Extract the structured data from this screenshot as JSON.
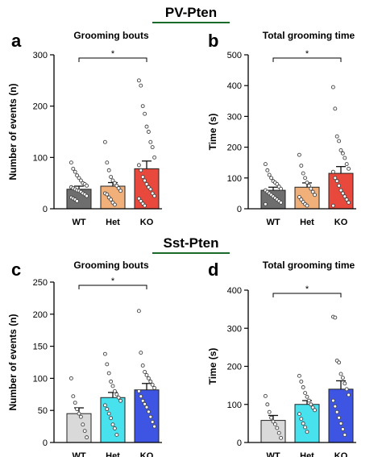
{
  "sections": [
    {
      "title": "PV-Pten",
      "underline_color": "#1a6a2a"
    },
    {
      "title": "Sst-Pten",
      "underline_color": "#1a6a2a"
    }
  ],
  "chart_data": [
    {
      "panel_letter": "a",
      "type": "bar",
      "title": "Grooming bouts",
      "xlabel": "",
      "ylabel": "Number of events (n)",
      "ylim": [
        0,
        300
      ],
      "yticks": [
        0,
        100,
        200,
        300
      ],
      "categories": [
        "WT",
        "Het",
        "KO"
      ],
      "values": [
        38,
        44,
        78
      ],
      "errors": [
        6,
        7,
        15
      ],
      "colors": [
        "#6e6e6e",
        "#f1b07a",
        "#e8493c"
      ],
      "points": [
        [
          90,
          78,
          72,
          65,
          60,
          55,
          50,
          48,
          45,
          42,
          40,
          38,
          36,
          35,
          33,
          30,
          28,
          25,
          22,
          20,
          18,
          15
        ],
        [
          130,
          90,
          75,
          62,
          55,
          50,
          45,
          40,
          35,
          30,
          28,
          22,
          18,
          12,
          8
        ],
        [
          250,
          240,
          200,
          185,
          160,
          150,
          130,
          120,
          100,
          85,
          75,
          62,
          55,
          48,
          42,
          38,
          30,
          25,
          20,
          15,
          10,
          6
        ]
      ],
      "significance": {
        "from": 0,
        "to": 2,
        "label": "*"
      }
    },
    {
      "panel_letter": "b",
      "type": "bar",
      "title": "Total grooming time",
      "xlabel": "",
      "ylabel": "Time (s)",
      "ylim": [
        0,
        500
      ],
      "yticks": [
        0,
        100,
        200,
        300,
        400,
        500
      ],
      "categories": [
        "WT",
        "Het",
        "KO"
      ],
      "values": [
        60,
        70,
        115
      ],
      "errors": [
        10,
        14,
        22
      ],
      "colors": [
        "#6e6e6e",
        "#f1b07a",
        "#e8493c"
      ],
      "points": [
        [
          145,
          125,
          110,
          100,
          90,
          85,
          80,
          72,
          65,
          60,
          55,
          50,
          45,
          40,
          35,
          30,
          25,
          20,
          15
        ],
        [
          175,
          140,
          115,
          100,
          85,
          75,
          65,
          55,
          45,
          38,
          30,
          22,
          15,
          10
        ],
        [
          395,
          325,
          235,
          220,
          190,
          180,
          165,
          145,
          130,
          120,
          100,
          90,
          75,
          60,
          50,
          40,
          30,
          20,
          10
        ]
      ],
      "significance": {
        "from": 0,
        "to": 2,
        "label": "*"
      }
    },
    {
      "panel_letter": "c",
      "type": "bar",
      "title": "Grooming bouts",
      "xlabel": "",
      "ylabel": "Number of events (n)",
      "ylim": [
        0,
        250
      ],
      "yticks": [
        0,
        50,
        100,
        150,
        200,
        250
      ],
      "categories": [
        "WT",
        "Het",
        "KO"
      ],
      "values": [
        45,
        70,
        82
      ],
      "errors": [
        9,
        8,
        10
      ],
      "colors": [
        "#d9d9d9",
        "#48e2ee",
        "#3e55e3"
      ],
      "points": [
        [
          100,
          72,
          62,
          52,
          45,
          40,
          28,
          18,
          8
        ],
        [
          138,
          122,
          108,
          95,
          88,
          80,
          75,
          70,
          65,
          58,
          52,
          45,
          38,
          28,
          22,
          12
        ],
        [
          205,
          140,
          120,
          110,
          105,
          100,
          95,
          90,
          85,
          80,
          72,
          65,
          60,
          55,
          48,
          40,
          32,
          25
        ]
      ],
      "significance": {
        "from": 0,
        "to": 2,
        "label": "*"
      }
    },
    {
      "panel_letter": "d",
      "type": "bar",
      "title": "Total grooming time",
      "xlabel": "",
      "ylabel": "Time (s)",
      "ylim": [
        0,
        400
      ],
      "yticks": [
        0,
        100,
        200,
        300,
        400
      ],
      "categories": [
        "WT",
        "Het",
        "KO"
      ],
      "values": [
        58,
        100,
        140
      ],
      "errors": [
        13,
        10,
        22
      ],
      "colors": [
        "#d9d9d9",
        "#48e2ee",
        "#3e55e3"
      ],
      "points": [
        [
          122,
          100,
          80,
          65,
          55,
          48,
          38,
          25,
          12
        ],
        [
          175,
          160,
          145,
          130,
          120,
          110,
          100,
          92,
          85,
          75,
          62,
          50,
          40,
          28
        ],
        [
          330,
          328,
          215,
          210,
          180,
          170,
          155,
          140,
          125,
          110,
          95,
          80,
          65,
          50,
          35,
          20
        ]
      ],
      "significance": {
        "from": 0,
        "to": 2,
        "label": "*"
      }
    }
  ]
}
